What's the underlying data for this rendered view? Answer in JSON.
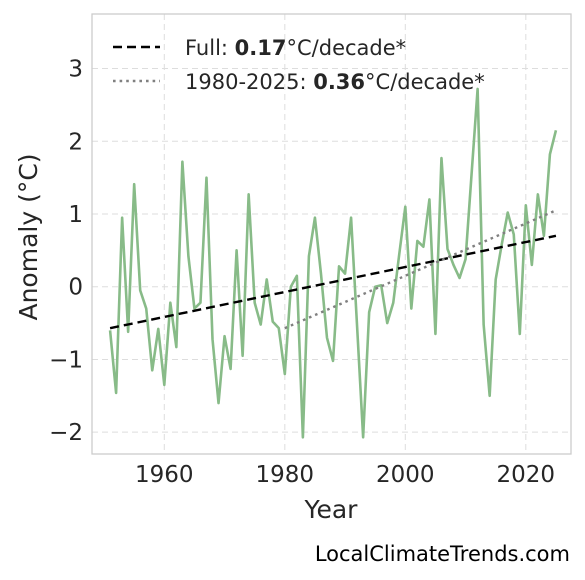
{
  "chart_data": {
    "type": "line",
    "xlabel": "Year",
    "ylabel": "Anomaly (°C)",
    "xlim": [
      1948,
      2027.5
    ],
    "ylim": [
      -2.3,
      3.75
    ],
    "xticks": [
      1960,
      1980,
      2000,
      2020
    ],
    "yticks": [
      -2,
      -1,
      0,
      1,
      2,
      3
    ],
    "ytick_labels": [
      "−2",
      "−1",
      "0",
      "1",
      "2",
      "3"
    ],
    "grid": true,
    "legend_position": "top-left",
    "series": [
      {
        "kind": "anomaly",
        "color": "#88bb88",
        "x": [
          1951,
          1952,
          1953,
          1954,
          1955,
          1956,
          1957,
          1958,
          1959,
          1960,
          1961,
          1962,
          1963,
          1964,
          1965,
          1966,
          1967,
          1968,
          1969,
          1970,
          1971,
          1972,
          1973,
          1974,
          1975,
          1976,
          1977,
          1978,
          1979,
          1980,
          1981,
          1982,
          1983,
          1984,
          1985,
          1986,
          1987,
          1988,
          1989,
          1990,
          1991,
          1992,
          1993,
          1994,
          1995,
          1996,
          1997,
          1998,
          1999,
          2000,
          2001,
          2002,
          2003,
          2004,
          2005,
          2006,
          2007,
          2008,
          2009,
          2010,
          2011,
          2012,
          2013,
          2014,
          2015,
          2016,
          2017,
          2018,
          2019,
          2020,
          2021,
          2022,
          2023,
          2024,
          2025
        ],
        "y": [
          -0.6,
          -1.46,
          0.95,
          -0.62,
          1.41,
          -0.05,
          -0.3,
          -1.15,
          -0.58,
          -1.35,
          -0.22,
          -0.83,
          1.72,
          0.42,
          -0.3,
          -0.22,
          1.5,
          -0.72,
          -1.6,
          -0.68,
          -1.13,
          0.5,
          -0.95,
          1.27,
          -0.22,
          -0.52,
          0.1,
          -0.48,
          -0.57,
          -1.2,
          0.0,
          0.15,
          -2.07,
          0.42,
          0.95,
          0.18,
          -0.7,
          -1.02,
          0.28,
          0.18,
          0.95,
          -0.55,
          -2.07,
          -0.35,
          0.0,
          0.02,
          -0.5,
          -0.22,
          0.45,
          1.1,
          -0.3,
          0.63,
          0.55,
          1.2,
          -0.65,
          1.77,
          0.52,
          0.3,
          0.12,
          0.38,
          1.55,
          2.72,
          -0.52,
          -1.5,
          0.1,
          0.58,
          1.02,
          0.72,
          -0.65,
          1.12,
          0.3,
          1.27,
          0.7,
          1.82,
          2.15
        ]
      },
      {
        "kind": "trend-full",
        "color": "#000000",
        "dash": "dashed",
        "x": [
          1951,
          2025
        ],
        "y": [
          -0.57,
          0.7
        ]
      },
      {
        "kind": "trend-1980",
        "color": "#808080",
        "dash": "dotted",
        "x": [
          1980,
          2025
        ],
        "y": [
          -0.57,
          1.05
        ]
      }
    ],
    "legend": [
      {
        "prefix": "Full: ",
        "value": "0.17",
        "suffix": "°C/decade*",
        "style": "dashed",
        "color": "#000000"
      },
      {
        "prefix": "1980-2025: ",
        "value": "0.36",
        "suffix": "°C/decade*",
        "style": "dotted",
        "color": "#808080"
      }
    ],
    "credit": "LocalClimateTrends.com"
  }
}
